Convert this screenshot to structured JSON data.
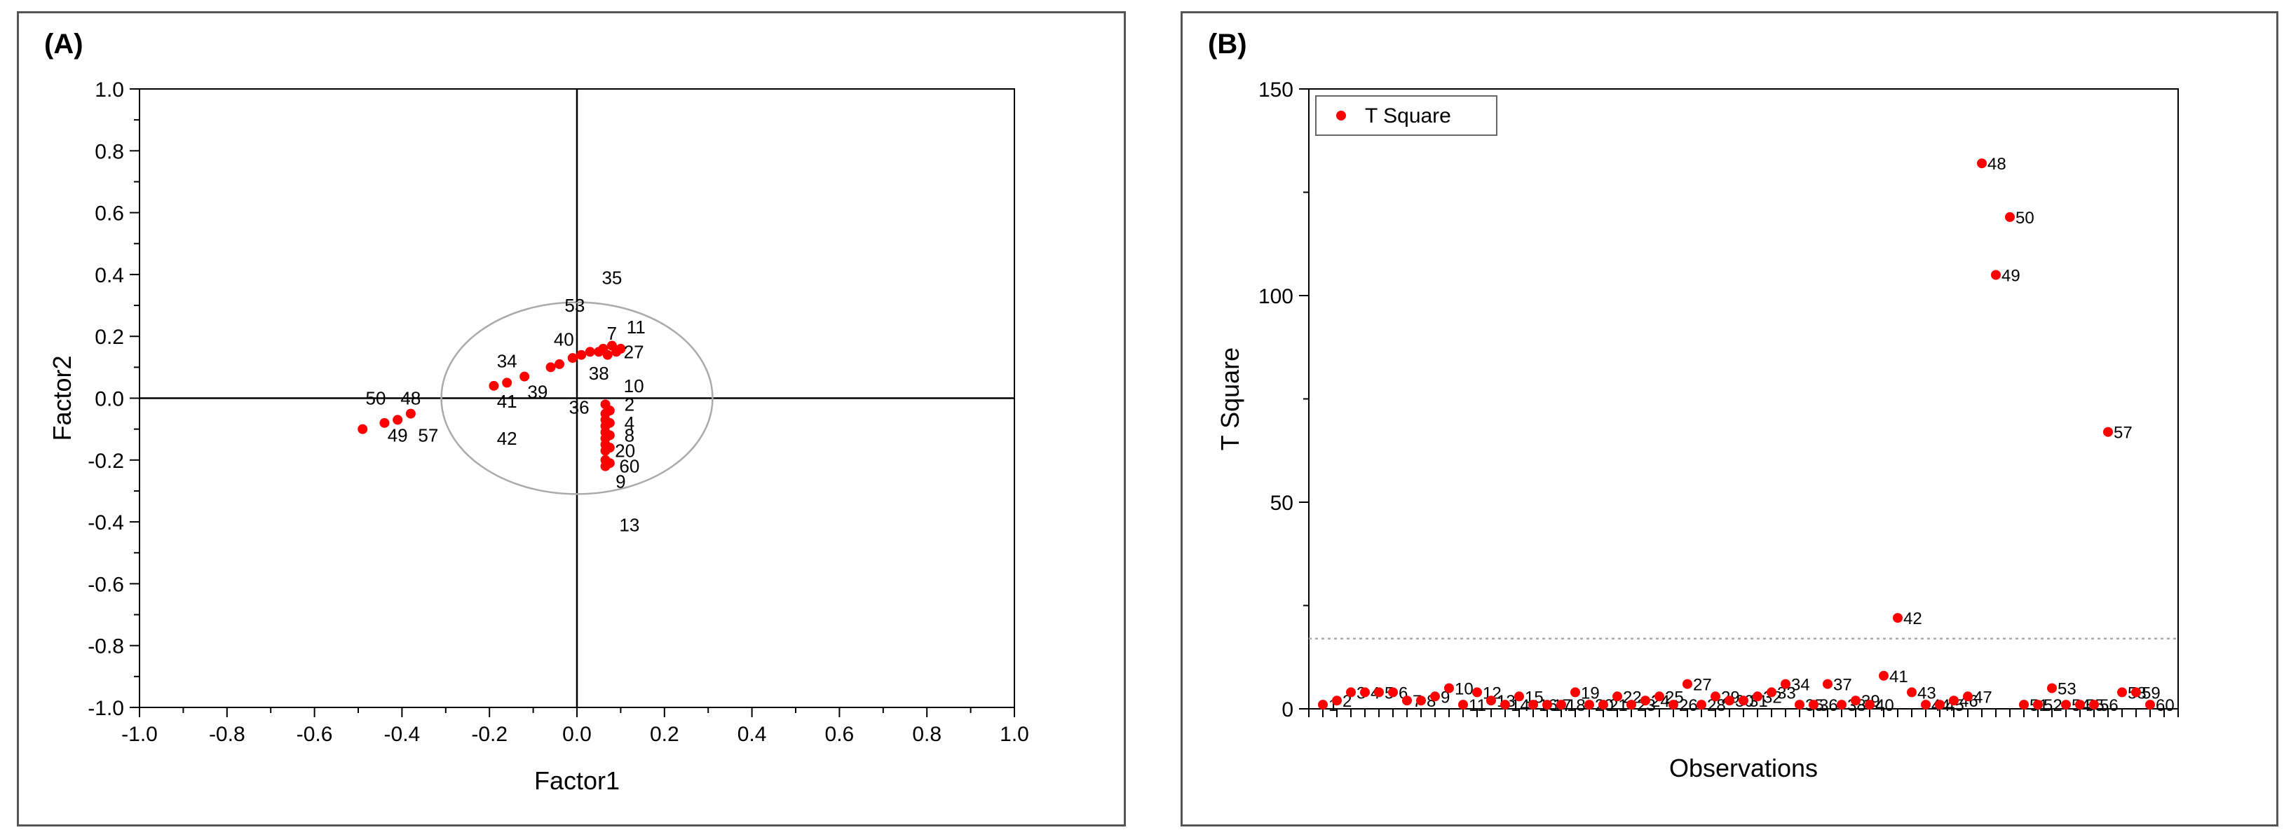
{
  "chart_data": [
    {
      "panel_label": "(A)",
      "type": "scatter",
      "xlabel": "Factor1",
      "ylabel": "Factor2",
      "xlim": [
        -1.0,
        1.0
      ],
      "ylim": [
        -1.0,
        1.0
      ],
      "xticks": [
        "-1.0",
        "-0.8",
        "-0.6",
        "-0.4",
        "-0.2",
        "0.0",
        "0.2",
        "0.4",
        "0.6",
        "0.8",
        "1.0"
      ],
      "yticks": [
        "1.0",
        "0.8",
        "0.6",
        "0.4",
        "0.2",
        "0.0",
        "-0.2",
        "-0.4",
        "-0.6",
        "-0.8",
        "-1.0"
      ],
      "circle_radius": 0.31,
      "colors": {
        "points": "#ff0000",
        "labels": "#000000",
        "circle": "#aaaaaa"
      },
      "points": [
        {
          "x": -0.49,
          "y": -0.1
        },
        {
          "x": -0.44,
          "y": -0.08
        },
        {
          "x": -0.41,
          "y": -0.07
        },
        {
          "x": -0.38,
          "y": -0.05
        },
        {
          "x": -0.19,
          "y": 0.04
        },
        {
          "x": -0.16,
          "y": 0.05
        },
        {
          "x": -0.12,
          "y": 0.07
        },
        {
          "x": -0.06,
          "y": 0.1
        },
        {
          "x": -0.04,
          "y": 0.11
        },
        {
          "x": -0.01,
          "y": 0.13
        },
        {
          "x": 0.01,
          "y": 0.14
        },
        {
          "x": 0.03,
          "y": 0.15
        },
        {
          "x": 0.05,
          "y": 0.15
        },
        {
          "x": 0.06,
          "y": 0.16
        },
        {
          "x": 0.07,
          "y": 0.14
        },
        {
          "x": 0.08,
          "y": 0.17
        },
        {
          "x": 0.09,
          "y": 0.15
        },
        {
          "x": 0.1,
          "y": 0.16
        },
        {
          "x": 0.065,
          "y": -0.02
        },
        {
          "x": 0.065,
          "y": -0.05
        },
        {
          "x": 0.065,
          "y": -0.07
        },
        {
          "x": 0.065,
          "y": -0.09
        },
        {
          "x": 0.065,
          "y": -0.11
        },
        {
          "x": 0.065,
          "y": -0.13
        },
        {
          "x": 0.065,
          "y": -0.15
        },
        {
          "x": 0.065,
          "y": -0.17
        },
        {
          "x": 0.065,
          "y": -0.2
        },
        {
          "x": 0.065,
          "y": -0.22
        },
        {
          "x": 0.075,
          "y": -0.04
        },
        {
          "x": 0.075,
          "y": -0.08
        },
        {
          "x": 0.075,
          "y": -0.12
        },
        {
          "x": 0.075,
          "y": -0.16
        },
        {
          "x": 0.075,
          "y": -0.21
        }
      ],
      "labels": [
        {
          "text": "35",
          "x": 0.08,
          "y": 0.39
        },
        {
          "text": "53",
          "x": -0.005,
          "y": 0.3
        },
        {
          "text": "11",
          "x": 0.135,
          "y": 0.23
        },
        {
          "text": "7",
          "x": 0.08,
          "y": 0.21
        },
        {
          "text": "40",
          "x": -0.03,
          "y": 0.19
        },
        {
          "text": "27",
          "x": 0.13,
          "y": 0.15
        },
        {
          "text": "34",
          "x": -0.16,
          "y": 0.12
        },
        {
          "text": "38",
          "x": 0.05,
          "y": 0.08
        },
        {
          "text": "10",
          "x": 0.13,
          "y": 0.04
        },
        {
          "text": "39",
          "x": -0.09,
          "y": 0.02
        },
        {
          "text": "50",
          "x": -0.46,
          "y": 0.0
        },
        {
          "text": "48",
          "x": -0.38,
          "y": 0.0
        },
        {
          "text": "41",
          "x": -0.16,
          "y": -0.01
        },
        {
          "text": "36",
          "x": 0.005,
          "y": -0.03
        },
        {
          "text": "2",
          "x": 0.12,
          "y": -0.02
        },
        {
          "text": "49",
          "x": -0.41,
          "y": -0.12
        },
        {
          "text": "57",
          "x": -0.34,
          "y": -0.12
        },
        {
          "text": "42",
          "x": -0.16,
          "y": -0.13
        },
        {
          "text": "4",
          "x": 0.12,
          "y": -0.08
        },
        {
          "text": "8",
          "x": 0.12,
          "y": -0.12
        },
        {
          "text": "20",
          "x": 0.11,
          "y": -0.17
        },
        {
          "text": "60",
          "x": 0.12,
          "y": -0.22
        },
        {
          "text": "9",
          "x": 0.1,
          "y": -0.27
        },
        {
          "text": "13",
          "x": 0.12,
          "y": -0.41
        }
      ]
    },
    {
      "panel_label": "(B)",
      "type": "scatter",
      "xlabel": "Observations",
      "ylabel": "T Square",
      "ylim": [
        0,
        150
      ],
      "yticks": [
        "0",
        "50",
        "100",
        "150"
      ],
      "xlim": [
        0,
        62
      ],
      "threshold": 17,
      "legend": {
        "label": "T Square",
        "position": "top-left"
      },
      "colors": {
        "points": "#ff0000",
        "labels": "#000000",
        "threshold": "#aaaaaa"
      },
      "series": [
        {
          "name": "T Square",
          "x": [
            1,
            2,
            3,
            4,
            5,
            6,
            7,
            8,
            9,
            10,
            11,
            12,
            13,
            14,
            15,
            16,
            17,
            18,
            19,
            20,
            21,
            22,
            23,
            24,
            25,
            26,
            27,
            28,
            29,
            30,
            31,
            32,
            33,
            34,
            35,
            36,
            37,
            38,
            39,
            40,
            41,
            42,
            43,
            44,
            45,
            46,
            47,
            48,
            49,
            50,
            51,
            52,
            53,
            54,
            55,
            56,
            57,
            58,
            59,
            60
          ],
          "values": [
            1,
            2,
            4,
            4,
            4,
            4,
            2,
            2,
            3,
            5,
            1,
            4,
            2,
            1,
            3,
            1,
            1,
            1,
            4,
            1,
            1,
            3,
            1,
            2,
            3,
            1,
            6,
            1,
            3,
            2,
            2,
            3,
            4,
            6,
            1,
            1,
            6,
            1,
            2,
            1,
            8,
            22,
            4,
            1,
            1,
            2,
            3,
            132,
            105,
            119,
            1,
            1,
            5,
            1,
            1,
            1,
            67,
            4,
            4,
            1
          ]
        }
      ]
    }
  ]
}
